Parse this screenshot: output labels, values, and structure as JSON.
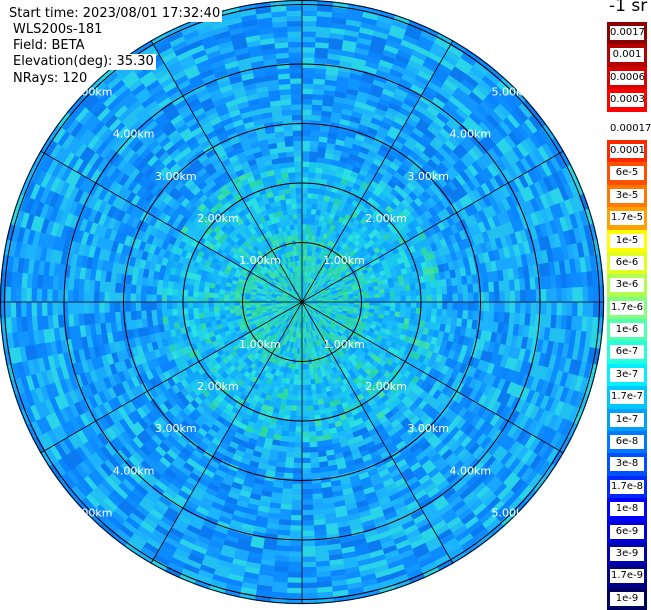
{
  "header": {
    "start_time": "Start time: 2023/08/01 17:32:40",
    "instrument": "WLS200s-181",
    "field": "Field: BETA",
    "elevation": "Elevation(deg): 35.30",
    "nrays": "NRays: 120"
  },
  "unit_label": "-1 sr",
  "range_labels": [
    "1.00km",
    "2.00km",
    "3.00km",
    "4.00km",
    "5.00km"
  ],
  "colorbar": {
    "top_group": [
      {
        "label": "0.0017",
        "color": "#8b0000"
      },
      {
        "label": "0.001",
        "color": "#b30000"
      },
      {
        "label": "0.0006",
        "color": "#d90000"
      },
      {
        "label": "0.0003",
        "color": "#ff0000"
      }
    ],
    "main_group": [
      {
        "label": "0.00017",
        "color": "#ffffff"
      },
      {
        "label": "0.0001",
        "color": "#ff2800"
      },
      {
        "label": "6e-5",
        "color": "#ff5000"
      },
      {
        "label": "3e-5",
        "color": "#ff7800"
      },
      {
        "label": "1.7e-5",
        "color": "#ffa000"
      },
      {
        "label": "1e-5",
        "color": "#ffff00"
      },
      {
        "label": "6e-6",
        "color": "#e0ff20"
      },
      {
        "label": "3e-6",
        "color": "#b0ff50"
      },
      {
        "label": "1.7e-6",
        "color": "#80ff80"
      },
      {
        "label": "1e-6",
        "color": "#50ffb0"
      },
      {
        "label": "6e-7",
        "color": "#20ffe0"
      },
      {
        "label": "3e-7",
        "color": "#00f0ff"
      },
      {
        "label": "1.7e-7",
        "color": "#00c8ff"
      },
      {
        "label": "1e-7",
        "color": "#00a0ff"
      },
      {
        "label": "6e-8",
        "color": "#0078ff"
      },
      {
        "label": "3e-8",
        "color": "#0050ff"
      },
      {
        "label": "1.7e-8",
        "color": "#0028ff"
      },
      {
        "label": "1e-8",
        "color": "#0000ff"
      },
      {
        "label": "6e-9",
        "color": "#0000d8"
      },
      {
        "label": "3e-9",
        "color": "#0000b0"
      },
      {
        "label": "1.7e-9",
        "color": "#000088"
      },
      {
        "label": "1e-9",
        "color": "#000060"
      }
    ]
  }
}
